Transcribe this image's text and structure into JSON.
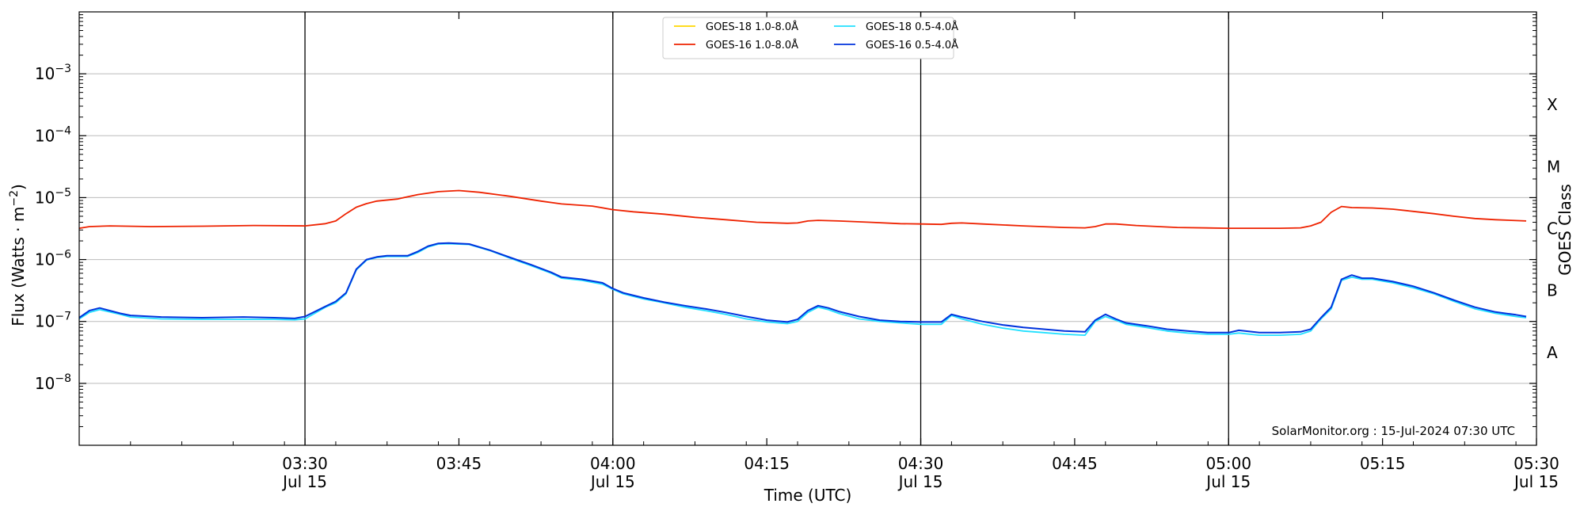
{
  "chart_data": {
    "type": "line",
    "yscale": "log",
    "ylim": [
      1e-09,
      0.01
    ],
    "xlim": [
      "03:08",
      "05:30"
    ],
    "ylabel": "Flux (Watts · m⁻²)",
    "xlabel": "Time (UTC)",
    "right_axis_label": "GOES Class",
    "y_ticks": [
      {
        "value": 1e-08,
        "exp": "−8"
      },
      {
        "value": 1e-07,
        "exp": "−7"
      },
      {
        "value": 1e-06,
        "exp": "−6"
      },
      {
        "value": 1e-05,
        "exp": "−5"
      },
      {
        "value": 0.0001,
        "exp": "−4"
      },
      {
        "value": 0.001,
        "exp": "−3"
      }
    ],
    "x_ticks": [
      {
        "time": "03:30",
        "label": "03:30",
        "date": "Jul 15"
      },
      {
        "time": "03:45",
        "label": "03:45",
        "date": ""
      },
      {
        "time": "04:00",
        "label": "04:00",
        "date": "Jul 15"
      },
      {
        "time": "04:15",
        "label": "04:15",
        "date": ""
      },
      {
        "time": "04:30",
        "label": "04:30",
        "date": "Jul 15"
      },
      {
        "time": "04:45",
        "label": "04:45",
        "date": ""
      },
      {
        "time": "05:00",
        "label": "05:00",
        "date": "Jul 15"
      },
      {
        "time": "05:15",
        "label": "05:15",
        "date": ""
      },
      {
        "time": "05:30",
        "label": "05:30",
        "date": "Jul 15"
      }
    ],
    "vlines": [
      "03:30",
      "04:00",
      "04:30",
      "05:00"
    ],
    "goes_classes": [
      {
        "label": "A",
        "value": 3.16e-08
      },
      {
        "label": "B",
        "value": 3.16e-07
      },
      {
        "label": "C",
        "value": 3.16e-06
      },
      {
        "label": "M",
        "value": 3.16e-05
      },
      {
        "label": "X",
        "value": 0.000316
      }
    ],
    "watermark": "SolarMonitor.org : 15-Jul-2024 07:30 UTC",
    "legend_placement": "top-center",
    "series": [
      {
        "name": "GOES-18 1.0-8.0Å",
        "color": "#ffd700",
        "points": []
      },
      {
        "name": "GOES-18 0.5-4.0Å",
        "color": "#22e0ff",
        "points": [
          [
            "03:08",
            1.1e-07
          ],
          [
            "03:09",
            1.4e-07
          ],
          [
            "03:10",
            1.55e-07
          ],
          [
            "03:12",
            1.3e-07
          ],
          [
            "03:13",
            1.18e-07
          ],
          [
            "03:16",
            1.1e-07
          ],
          [
            "03:20",
            1.08e-07
          ],
          [
            "03:24",
            1.08e-07
          ],
          [
            "03:27",
            1.08e-07
          ],
          [
            "03:29",
            1.06e-07
          ],
          [
            "03:30",
            1.1e-07
          ],
          [
            "03:32",
            1.7e-07
          ],
          [
            "03:33",
            2e-07
          ],
          [
            "03:34",
            2.8e-07
          ],
          [
            "03:35",
            6.8e-07
          ],
          [
            "03:36",
            9.8e-07
          ],
          [
            "03:37",
            1.08e-06
          ],
          [
            "03:38",
            1.12e-06
          ],
          [
            "03:40",
            1.12e-06
          ],
          [
            "03:41",
            1.3e-06
          ],
          [
            "03:42",
            1.6e-06
          ],
          [
            "03:43",
            1.78e-06
          ],
          [
            "03:44",
            1.8e-06
          ],
          [
            "03:46",
            1.75e-06
          ],
          [
            "03:48",
            1.4e-06
          ],
          [
            "03:50",
            1.05e-06
          ],
          [
            "03:52",
            8e-07
          ],
          [
            "03:54",
            6e-07
          ],
          [
            "03:55",
            5e-07
          ],
          [
            "03:57",
            4.6e-07
          ],
          [
            "03:59",
            4e-07
          ],
          [
            "04:00",
            3.3e-07
          ],
          [
            "04:01",
            2.8e-07
          ],
          [
            "04:03",
            2.3e-07
          ],
          [
            "04:05",
            2e-07
          ],
          [
            "04:07",
            1.7e-07
          ],
          [
            "04:09",
            1.5e-07
          ],
          [
            "04:11",
            1.3e-07
          ],
          [
            "04:13",
            1.1e-07
          ],
          [
            "04:15",
            9.8e-08
          ],
          [
            "04:17",
            9.2e-08
          ],
          [
            "04:18",
            1e-07
          ],
          [
            "04:19",
            1.4e-07
          ],
          [
            "04:20",
            1.7e-07
          ],
          [
            "04:21",
            1.55e-07
          ],
          [
            "04:22",
            1.35e-07
          ],
          [
            "04:24",
            1.1e-07
          ],
          [
            "04:26",
            1e-07
          ],
          [
            "04:28",
            9.5e-08
          ],
          [
            "04:30",
            9e-08
          ],
          [
            "04:32",
            9e-08
          ],
          [
            "04:33",
            1.25e-07
          ],
          [
            "04:34",
            1.1e-07
          ],
          [
            "04:36",
            9e-08
          ],
          [
            "04:38",
            7.8e-08
          ],
          [
            "04:40",
            7e-08
          ],
          [
            "04:42",
            6.6e-08
          ],
          [
            "04:44",
            6.2e-08
          ],
          [
            "04:46",
            6e-08
          ],
          [
            "04:47",
            1e-07
          ],
          [
            "04:48",
            1.2e-07
          ],
          [
            "04:49",
            1.05e-07
          ],
          [
            "04:50",
            9e-08
          ],
          [
            "04:52",
            8e-08
          ],
          [
            "04:54",
            7e-08
          ],
          [
            "04:56",
            6.5e-08
          ],
          [
            "04:58",
            6.2e-08
          ],
          [
            "05:00",
            6.2e-08
          ],
          [
            "05:01",
            6.5e-08
          ],
          [
            "05:03",
            6e-08
          ],
          [
            "05:05",
            6e-08
          ],
          [
            "05:07",
            6.2e-08
          ],
          [
            "05:08",
            7e-08
          ],
          [
            "05:09",
            1.1e-07
          ],
          [
            "05:10",
            1.6e-07
          ],
          [
            "05:11",
            4.6e-07
          ],
          [
            "05:12",
            5.2e-07
          ],
          [
            "05:13",
            4.8e-07
          ],
          [
            "05:14",
            4.8e-07
          ],
          [
            "05:16",
            4.2e-07
          ],
          [
            "05:18",
            3.5e-07
          ],
          [
            "05:20",
            2.8e-07
          ],
          [
            "05:22",
            2.1e-07
          ],
          [
            "05:24",
            1.6e-07
          ],
          [
            "05:26",
            1.35e-07
          ],
          [
            "05:28",
            1.2e-07
          ],
          [
            "05:29",
            1.15e-07
          ]
        ]
      },
      {
        "name": "GOES-16 1.0-8.0Å",
        "color": "#ee2200",
        "points": [
          [
            "03:08",
            3.2e-06
          ],
          [
            "03:09",
            3.4e-06
          ],
          [
            "03:11",
            3.5e-06
          ],
          [
            "03:15",
            3.4e-06
          ],
          [
            "03:20",
            3.45e-06
          ],
          [
            "03:25",
            3.55e-06
          ],
          [
            "03:30",
            3.5e-06
          ],
          [
            "03:32",
            3.8e-06
          ],
          [
            "03:33",
            4.2e-06
          ],
          [
            "03:34",
            5.5e-06
          ],
          [
            "03:35",
            7e-06
          ],
          [
            "03:36",
            8e-06
          ],
          [
            "03:37",
            8.8e-06
          ],
          [
            "03:39",
            9.5e-06
          ],
          [
            "03:41",
            1.12e-05
          ],
          [
            "03:43",
            1.25e-05
          ],
          [
            "03:45",
            1.3e-05
          ],
          [
            "03:47",
            1.22e-05
          ],
          [
            "03:50",
            1.05e-05
          ],
          [
            "03:53",
            8.8e-06
          ],
          [
            "03:55",
            7.9e-06
          ],
          [
            "03:58",
            7.3e-06
          ],
          [
            "04:00",
            6.4e-06
          ],
          [
            "04:02",
            5.9e-06
          ],
          [
            "04:05",
            5.4e-06
          ],
          [
            "04:08",
            4.8e-06
          ],
          [
            "04:11",
            4.4e-06
          ],
          [
            "04:14",
            4e-06
          ],
          [
            "04:17",
            3.85e-06
          ],
          [
            "04:18",
            3.9e-06
          ],
          [
            "04:19",
            4.2e-06
          ],
          [
            "04:20",
            4.3e-06
          ],
          [
            "04:22",
            4.2e-06
          ],
          [
            "04:25",
            4e-06
          ],
          [
            "04:28",
            3.8e-06
          ],
          [
            "04:30",
            3.75e-06
          ],
          [
            "04:32",
            3.7e-06
          ],
          [
            "04:33",
            3.85e-06
          ],
          [
            "04:34",
            3.9e-06
          ],
          [
            "04:36",
            3.75e-06
          ],
          [
            "04:40",
            3.5e-06
          ],
          [
            "04:44",
            3.3e-06
          ],
          [
            "04:46",
            3.25e-06
          ],
          [
            "04:47",
            3.4e-06
          ],
          [
            "04:48",
            3.75e-06
          ],
          [
            "04:49",
            3.75e-06
          ],
          [
            "04:51",
            3.55e-06
          ],
          [
            "04:55",
            3.3e-06
          ],
          [
            "05:00",
            3.2e-06
          ],
          [
            "05:05",
            3.2e-06
          ],
          [
            "05:07",
            3.25e-06
          ],
          [
            "05:08",
            3.5e-06
          ],
          [
            "05:09",
            4e-06
          ],
          [
            "05:10",
            5.8e-06
          ],
          [
            "05:11",
            7.2e-06
          ],
          [
            "05:12",
            6.9e-06
          ],
          [
            "05:14",
            6.8e-06
          ],
          [
            "05:16",
            6.5e-06
          ],
          [
            "05:18",
            6e-06
          ],
          [
            "05:20",
            5.5e-06
          ],
          [
            "05:22",
            5e-06
          ],
          [
            "05:24",
            4.6e-06
          ],
          [
            "05:26",
            4.4e-06
          ],
          [
            "05:29",
            4.2e-06
          ]
        ]
      },
      {
        "name": "GOES-16 0.5-4.0Å",
        "color": "#0033dd",
        "points": [
          [
            "03:08",
            1.15e-07
          ],
          [
            "03:09",
            1.5e-07
          ],
          [
            "03:10",
            1.65e-07
          ],
          [
            "03:12",
            1.35e-07
          ],
          [
            "03:13",
            1.25e-07
          ],
          [
            "03:16",
            1.18e-07
          ],
          [
            "03:20",
            1.15e-07
          ],
          [
            "03:24",
            1.18e-07
          ],
          [
            "03:27",
            1.15e-07
          ],
          [
            "03:29",
            1.12e-07
          ],
          [
            "03:30",
            1.2e-07
          ],
          [
            "03:32",
            1.75e-07
          ],
          [
            "03:33",
            2.1e-07
          ],
          [
            "03:34",
            2.9e-07
          ],
          [
            "03:35",
            7e-07
          ],
          [
            "03:36",
            1e-06
          ],
          [
            "03:37",
            1.1e-06
          ],
          [
            "03:38",
            1.15e-06
          ],
          [
            "03:40",
            1.15e-06
          ],
          [
            "03:41",
            1.35e-06
          ],
          [
            "03:42",
            1.65e-06
          ],
          [
            "03:43",
            1.82e-06
          ],
          [
            "03:44",
            1.85e-06
          ],
          [
            "03:46",
            1.78e-06
          ],
          [
            "03:48",
            1.42e-06
          ],
          [
            "03:50",
            1.08e-06
          ],
          [
            "03:52",
            8.3e-07
          ],
          [
            "03:54",
            6.2e-07
          ],
          [
            "03:55",
            5.2e-07
          ],
          [
            "03:57",
            4.8e-07
          ],
          [
            "03:59",
            4.2e-07
          ],
          [
            "04:00",
            3.4e-07
          ],
          [
            "04:01",
            2.9e-07
          ],
          [
            "04:03",
            2.4e-07
          ],
          [
            "04:05",
            2.05e-07
          ],
          [
            "04:07",
            1.8e-07
          ],
          [
            "04:09",
            1.6e-07
          ],
          [
            "04:11",
            1.4e-07
          ],
          [
            "04:13",
            1.2e-07
          ],
          [
            "04:15",
            1.05e-07
          ],
          [
            "04:17",
            9.8e-08
          ],
          [
            "04:18",
            1.08e-07
          ],
          [
            "04:19",
            1.5e-07
          ],
          [
            "04:20",
            1.8e-07
          ],
          [
            "04:21",
            1.65e-07
          ],
          [
            "04:22",
            1.45e-07
          ],
          [
            "04:24",
            1.2e-07
          ],
          [
            "04:26",
            1.05e-07
          ],
          [
            "04:28",
            1e-07
          ],
          [
            "04:30",
            9.8e-08
          ],
          [
            "04:32",
            9.8e-08
          ],
          [
            "04:33",
            1.3e-07
          ],
          [
            "04:34",
            1.18e-07
          ],
          [
            "04:36",
            1e-07
          ],
          [
            "04:38",
            8.8e-08
          ],
          [
            "04:40",
            8e-08
          ],
          [
            "04:42",
            7.5e-08
          ],
          [
            "04:44",
            7e-08
          ],
          [
            "04:46",
            6.8e-08
          ],
          [
            "04:47",
            1.05e-07
          ],
          [
            "04:48",
            1.3e-07
          ],
          [
            "04:49",
            1.1e-07
          ],
          [
            "04:50",
            9.5e-08
          ],
          [
            "04:52",
            8.5e-08
          ],
          [
            "04:54",
            7.5e-08
          ],
          [
            "04:56",
            7e-08
          ],
          [
            "04:58",
            6.6e-08
          ],
          [
            "05:00",
            6.6e-08
          ],
          [
            "05:01",
            7.2e-08
          ],
          [
            "05:03",
            6.6e-08
          ],
          [
            "05:05",
            6.6e-08
          ],
          [
            "05:07",
            6.8e-08
          ],
          [
            "05:08",
            7.5e-08
          ],
          [
            "05:09",
            1.15e-07
          ],
          [
            "05:10",
            1.7e-07
          ],
          [
            "05:11",
            4.8e-07
          ],
          [
            "05:12",
            5.6e-07
          ],
          [
            "05:13",
            5e-07
          ],
          [
            "05:14",
            5e-07
          ],
          [
            "05:16",
            4.4e-07
          ],
          [
            "05:18",
            3.7e-07
          ],
          [
            "05:20",
            2.9e-07
          ],
          [
            "05:22",
            2.2e-07
          ],
          [
            "05:24",
            1.7e-07
          ],
          [
            "05:26",
            1.42e-07
          ],
          [
            "05:28",
            1.28e-07
          ],
          [
            "05:29",
            1.2e-07
          ]
        ]
      }
    ]
  }
}
